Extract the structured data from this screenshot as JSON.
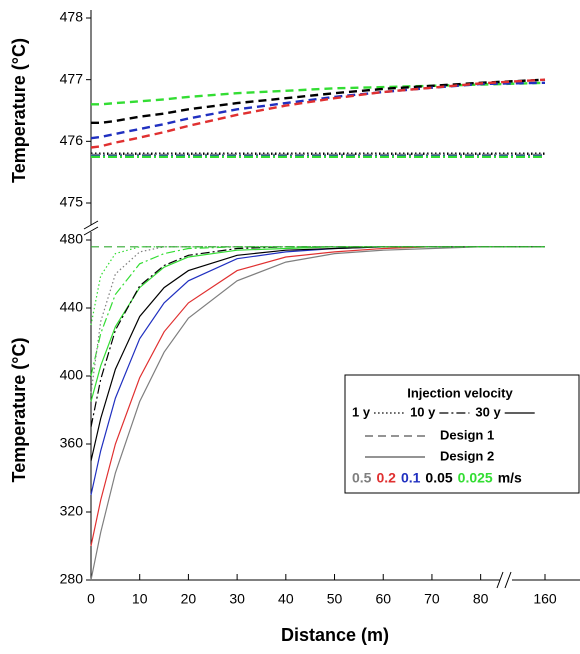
{
  "chart_data": [
    {
      "type": "line",
      "ylabel": "Temperature (°C)",
      "ylim": [
        475,
        478
      ],
      "yticks": [
        475,
        476,
        477,
        478
      ],
      "xlim": [
        0,
        170
      ],
      "x_break": [
        85,
        150
      ],
      "x": [
        0,
        2,
        5,
        10,
        15,
        20,
        30,
        40,
        50,
        60,
        70,
        80,
        160
      ],
      "series": [
        {
          "color": "#33dd33",
          "dash": "dashed",
          "values": [
            476.6,
            476.6,
            476.62,
            476.65,
            476.68,
            476.72,
            476.78,
            476.82,
            476.86,
            476.88,
            476.9,
            476.92,
            476.95
          ]
        },
        {
          "color": "#000000",
          "dash": "dashed",
          "values": [
            476.3,
            476.3,
            476.33,
            476.4,
            476.45,
            476.52,
            476.62,
            476.7,
            476.78,
            476.85,
            476.9,
            476.95,
            477.0
          ]
        },
        {
          "color": "#2030c0",
          "dash": "dashed",
          "values": [
            476.05,
            476.07,
            476.12,
            476.2,
            476.28,
            476.37,
            476.52,
            476.62,
            476.72,
            476.8,
            476.87,
            476.93,
            476.95
          ]
        },
        {
          "color": "#e03030",
          "dash": "dashed",
          "values": [
            475.9,
            475.92,
            475.98,
            476.06,
            476.15,
            476.25,
            476.43,
            476.58,
            476.7,
            476.8,
            476.87,
            476.94,
            477.0
          ]
        },
        {
          "color": "#000000",
          "dash": "dotted",
          "values": [
            475.8,
            475.8,
            475.8,
            475.8,
            475.8,
            475.8,
            475.8,
            475.8,
            475.8,
            475.8,
            475.8,
            475.8,
            475.8
          ]
        },
        {
          "color": "#7f7f7f",
          "dash": "dashdot",
          "values": [
            475.78,
            475.78,
            475.78,
            475.78,
            475.78,
            475.78,
            475.78,
            475.78,
            475.78,
            475.78,
            475.78,
            475.78,
            475.78
          ]
        },
        {
          "color": "#2030c0",
          "dash": "dashdot",
          "values": [
            475.76,
            475.76,
            475.76,
            475.76,
            475.76,
            475.76,
            475.76,
            475.76,
            475.76,
            475.76,
            475.76,
            475.76,
            475.76
          ]
        },
        {
          "color": "#33dd33",
          "dash": "dashdot",
          "values": [
            475.75,
            475.75,
            475.75,
            475.75,
            475.75,
            475.75,
            475.75,
            475.75,
            475.75,
            475.75,
            475.75,
            475.75,
            475.75
          ]
        }
      ]
    },
    {
      "type": "line",
      "ylabel": "Temperature (°C)",
      "xlabel": "Distance (m)",
      "ylim": [
        280,
        480
      ],
      "yticks": [
        280,
        320,
        360,
        400,
        440,
        480
      ],
      "xlim": [
        0,
        170
      ],
      "x_break": [
        85,
        150
      ],
      "xticks": [
        0,
        10,
        20,
        30,
        40,
        50,
        60,
        70,
        80,
        160
      ],
      "x": [
        0,
        2,
        5,
        10,
        15,
        20,
        30,
        40,
        50,
        60,
        70,
        80,
        160
      ],
      "series": [
        {
          "color": "#7f7f7f",
          "dash": "solid",
          "values": [
            280,
            308,
            343,
            385,
            414,
            434,
            456,
            467,
            472,
            474,
            475,
            476,
            476
          ]
        },
        {
          "color": "#e03030",
          "dash": "solid",
          "values": [
            300,
            327,
            360,
            399,
            426,
            443,
            462,
            470,
            473,
            475,
            476,
            476,
            476
          ]
        },
        {
          "color": "#2030c0",
          "dash": "solid",
          "values": [
            330,
            356,
            387,
            422,
            443,
            456,
            469,
            473,
            475,
            476,
            476,
            476,
            476
          ]
        },
        {
          "color": "#000000",
          "dash": "solid",
          "values": [
            350,
            375,
            404,
            435,
            452,
            462,
            471,
            474,
            475,
            476,
            476,
            476,
            476
          ]
        },
        {
          "color": "#33dd33",
          "dash": "solid",
          "values": [
            385,
            406,
            429,
            452,
            464,
            470,
            474,
            475,
            476,
            476,
            476,
            476,
            476
          ]
        },
        {
          "color": "#000000",
          "dash": "dashdot",
          "values": [
            370,
            398,
            427,
            453,
            465,
            471,
            475,
            476,
            476,
            476,
            476,
            476,
            476
          ]
        },
        {
          "color": "#33dd33",
          "dash": "dashdot",
          "values": [
            400,
            425,
            448,
            466,
            472,
            475,
            476,
            476,
            476,
            476,
            476,
            476,
            476
          ]
        },
        {
          "color": "#7f7f7f",
          "dash": "dotted",
          "values": [
            390,
            432,
            460,
            473,
            476,
            476,
            476,
            476,
            476,
            476,
            476,
            476,
            476
          ]
        },
        {
          "color": "#33dd33",
          "dash": "dotted",
          "values": [
            430,
            459,
            472,
            476,
            476,
            476,
            476,
            476,
            476,
            476,
            476,
            476,
            476
          ]
        },
        {
          "color": "#33aa33",
          "dash": "dashed",
          "values": [
            476,
            476,
            476,
            476,
            476,
            476,
            476,
            476,
            476,
            476,
            476,
            476,
            476
          ]
        }
      ],
      "legend": {
        "title": "Injection velocity",
        "times": [
          {
            "label": "1 y",
            "dash": "dotted"
          },
          {
            "label": "10 y",
            "dash": "dashdot"
          },
          {
            "label": "30 y",
            "dash": "solid"
          }
        ],
        "designs": [
          {
            "label": "Design 1",
            "dash": "dashed"
          },
          {
            "label": "Design 2",
            "dash": "solid"
          }
        ],
        "velocities": [
          {
            "label": "0.5",
            "color": "#7f7f7f"
          },
          {
            "label": "0.2",
            "color": "#e03030"
          },
          {
            "label": "0.1",
            "color": "#2030c0"
          },
          {
            "label": "0.05",
            "color": "#000000"
          },
          {
            "label": "0.025",
            "color": "#33dd33"
          }
        ],
        "unit": "m/s"
      }
    }
  ]
}
